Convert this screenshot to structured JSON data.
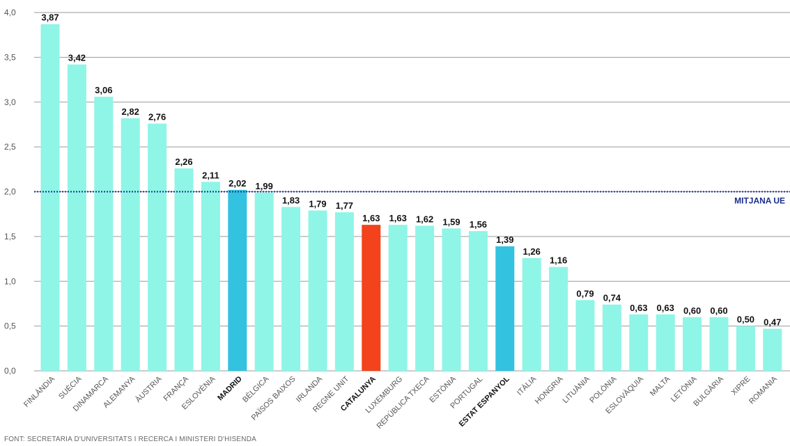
{
  "chart_data": {
    "type": "bar",
    "categories": [
      "FINLÀNDIA",
      "SUÈCIA",
      "DINAMARCA",
      "ALEMANYA",
      "ÀUSTRIA",
      "FRANÇA",
      "ESLOVÈNIA",
      "MADRID",
      "BÈLGICA",
      "PAÏSOS BAIXOS",
      "IRLANDA",
      "REGNE UNIT",
      "CATALUNYA",
      "LUXEMBURG",
      "REPÚBLICA TXECA",
      "ESTÒNIA",
      "PORTUGAL",
      "ESTAT ESPANYOL",
      "ITÀLIA",
      "HONGRIA",
      "LITUÀNIA",
      "POLÒNIA",
      "ESLOVÀQUIA",
      "MALTA",
      "LETÒNIA",
      "BULGÀRIA",
      "XIPRE",
      "ROMANIA"
    ],
    "values": [
      3.87,
      3.42,
      3.06,
      2.82,
      2.76,
      2.26,
      2.11,
      2.02,
      1.99,
      1.83,
      1.79,
      1.77,
      1.63,
      1.63,
      1.62,
      1.59,
      1.56,
      1.39,
      1.26,
      1.16,
      0.79,
      0.74,
      0.63,
      0.63,
      0.6,
      0.6,
      0.5,
      0.47
    ],
    "value_labels": [
      "3,87",
      "3,42",
      "3,06",
      "2,82",
      "2,76",
      "2,26",
      "2,11",
      "2,02",
      "1,99",
      "1,83",
      "1,79",
      "1,77",
      "1,63",
      "1,63",
      "1,62",
      "1,59",
      "1,56",
      "1,39",
      "1,26",
      "1,16",
      "0,79",
      "0,74",
      "0,63",
      "0,63",
      "0,60",
      "0,60",
      "0,50",
      "0,47"
    ],
    "bar_colors": [
      "#8ff5e6",
      "#8ff5e6",
      "#8ff5e6",
      "#8ff5e6",
      "#8ff5e6",
      "#8ff5e6",
      "#8ff5e6",
      "#33c2e0",
      "#8ff5e6",
      "#8ff5e6",
      "#8ff5e6",
      "#8ff5e6",
      "#f2431c",
      "#8ff5e6",
      "#8ff5e6",
      "#8ff5e6",
      "#8ff5e6",
      "#33c2e0",
      "#8ff5e6",
      "#8ff5e6",
      "#8ff5e6",
      "#8ff5e6",
      "#8ff5e6",
      "#8ff5e6",
      "#8ff5e6",
      "#8ff5e6",
      "#8ff5e6",
      "#8ff5e6"
    ],
    "bold_categories": [
      "MADRID",
      "CATALUNYA",
      "ESTAT ESPANYOL"
    ],
    "y_ticks": [
      "0,0",
      "0,5",
      "1,0",
      "1,5",
      "2,0",
      "2,5",
      "3,0",
      "3,5",
      "4,0"
    ],
    "ylim": [
      0,
      4
    ],
    "grid": true,
    "reference_line": {
      "value": 2.0,
      "label": "MITJANA UE",
      "color": "#1a2f8a"
    },
    "title": "",
    "xlabel": "",
    "ylabel": ""
  },
  "source": "FONT: SECRETARIA D'UNIVERSITATS I RECERCA I MINISTERI D'HISENDA"
}
